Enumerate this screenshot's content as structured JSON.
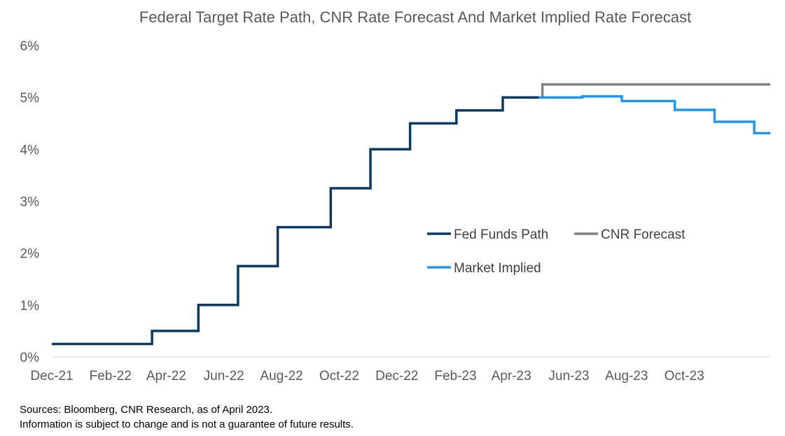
{
  "chart_data": {
    "type": "line",
    "title": "Federal Target Rate Path, CNR Rate Forecast And Market Implied Rate Forecast",
    "xlabel": "",
    "ylabel": "",
    "x_ticks": [
      "Dec-21",
      "Feb-22",
      "Apr-22",
      "Jun-22",
      "Aug-22",
      "Oct-22",
      "Dec-22",
      "Feb-23",
      "Apr-23",
      "Jun-23",
      "Aug-23",
      "Oct-23"
    ],
    "y_ticks": [
      "0%",
      "1%",
      "2%",
      "3%",
      "4%",
      "5%",
      "6%"
    ],
    "ylim": [
      0,
      6
    ],
    "xlim": [
      "2021-12-01",
      "2023-12-31"
    ],
    "grid": false,
    "legend_position": "center-right",
    "series": [
      {
        "name": "Fed Funds Path",
        "color": "#0b3a67",
        "step": true,
        "points": [
          [
            "2021-12-01",
            0.25
          ],
          [
            "2022-03-17",
            0.5
          ],
          [
            "2022-05-05",
            1.0
          ],
          [
            "2022-06-16",
            1.75
          ],
          [
            "2022-07-28",
            2.5
          ],
          [
            "2022-09-22",
            3.25
          ],
          [
            "2022-11-03",
            4.0
          ],
          [
            "2022-12-15",
            4.5
          ],
          [
            "2023-02-02",
            4.75
          ],
          [
            "2023-03-23",
            5.0
          ],
          [
            "2023-04-30",
            5.0
          ]
        ]
      },
      {
        "name": "CNR Forecast",
        "color": "#808080",
        "step": true,
        "points": [
          [
            "2023-04-30",
            5.0
          ],
          [
            "2023-05-04",
            5.25
          ],
          [
            "2023-12-31",
            5.25
          ]
        ]
      },
      {
        "name": "Market Implied",
        "color": "#2196f3",
        "step": true,
        "points": [
          [
            "2023-04-30",
            5.0
          ],
          [
            "2023-06-15",
            5.02
          ],
          [
            "2023-07-27",
            4.93
          ],
          [
            "2023-09-21",
            4.76
          ],
          [
            "2023-11-02",
            4.53
          ],
          [
            "2023-12-14",
            4.31
          ],
          [
            "2023-12-31",
            4.31
          ]
        ]
      }
    ]
  },
  "footer": {
    "line1": "Sources: Bloomberg, CNR Research, as of April 2023.",
    "line2": "Information is subject to change and is not a guarantee of future results."
  }
}
